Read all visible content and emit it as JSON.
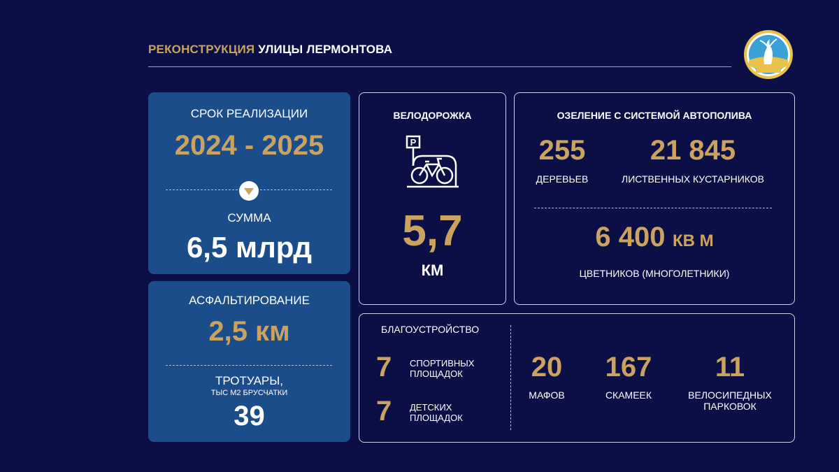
{
  "header": {
    "title_part1": "РЕКОНСТРУКЦИЯ",
    "title_part2": "УЛИЦЫ ЛЕРМОНТОВА",
    "emblem_icon": "region-emblem-icon"
  },
  "srok": {
    "label": "СРОК РЕАЛИЗАЦИИ",
    "value": "2024 - 2025",
    "summa_label": "СУММА",
    "summa_value": "6,5 млрд"
  },
  "asphalt": {
    "label": "АСФАЛЬТИРОВАНИЕ",
    "value": "2,5 км",
    "trotuary_label": "ТРОТУАРЫ,",
    "trotuary_sub": "ТЫС М2 БРУСЧАТКИ",
    "trotuary_value": "39"
  },
  "velo": {
    "label": "ВЕЛОДОРОЖКА",
    "icon": "bicycle-parking-icon",
    "value": "5,7",
    "unit": "КМ"
  },
  "ozelenenie": {
    "label": "ОЗЕЛЕНИЕ С СИСТЕМОЙ АВТОПОЛИВА",
    "trees_value": "255",
    "trees_label": "ДЕРЕВЬЕВ",
    "shrubs_value": "21 845",
    "shrubs_label": "ЛИСТВЕННЫХ КУСТАРНИКОВ",
    "flowers_value": "6 400",
    "flowers_unit": "КВ М",
    "flowers_label": "ЦВЕТНИКОВ (МНОГОЛЕТНИКИ)"
  },
  "blago": {
    "label": "БЛАГОУСТРОЙСТВО",
    "sport_value": "7",
    "sport_label_1": "СПОРТИВНЫХ",
    "sport_label_2": "ПЛОЩАДОК",
    "kids_value": "7",
    "kids_label_1": "ДЕТСКИХ",
    "kids_label_2": "ПЛОЩАДОК",
    "mafs_value": "20",
    "mafs_label": "МАФОВ",
    "benches_value": "167",
    "benches_label": "СКАМЕЕК",
    "bike_parking_value": "11",
    "bike_parking_label_1": "ВЕЛОСИПЕДНЫХ",
    "bike_parking_label_2": "ПАРКОВОК"
  },
  "colors": {
    "background": "#0b0f45",
    "panel_blue": "#1c4d8b",
    "accent_gold": "#c9a35f"
  }
}
